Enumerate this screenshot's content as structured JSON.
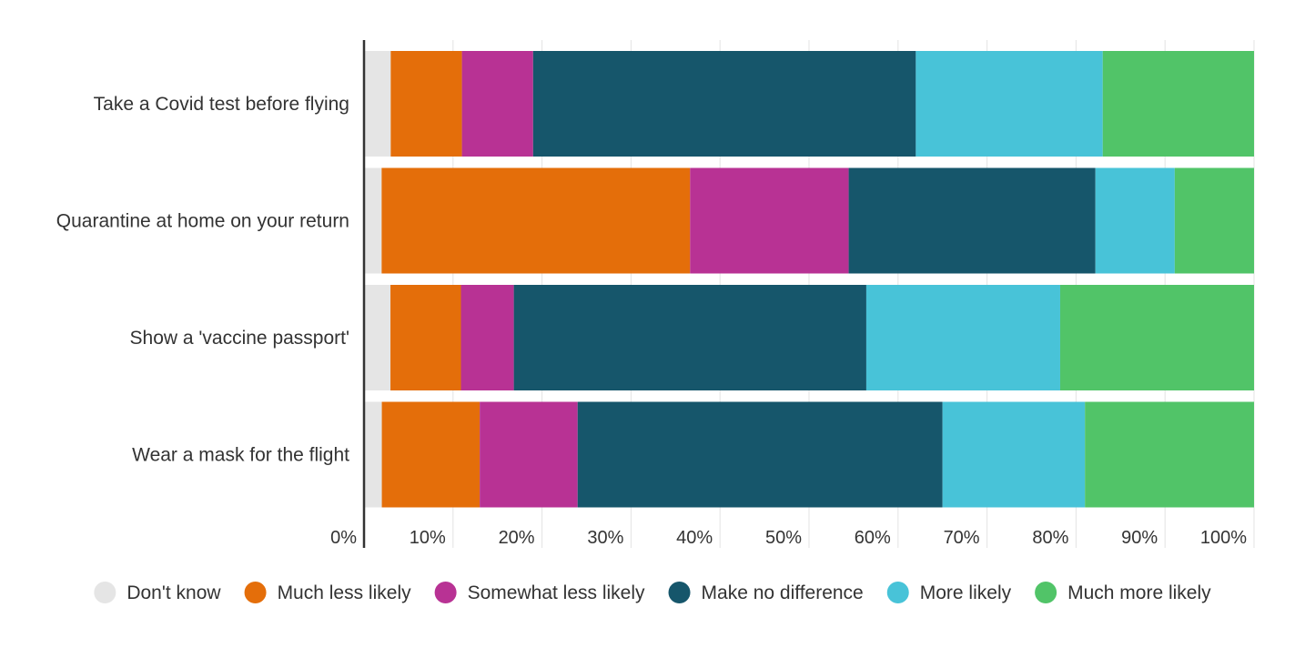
{
  "chart_data": {
    "type": "bar",
    "orientation": "horizontal",
    "stacked": true,
    "title": "",
    "xlabel": "",
    "ylabel": "",
    "xlim": [
      0,
      100
    ],
    "grid": true,
    "legend_position": "bottom",
    "categories": [
      "Take a Covid test before flying",
      "Quarantine at home on your return",
      "Show a 'vaccine passport'",
      "Wear a mask for the flight"
    ],
    "x_ticks": [
      "0%",
      "10%",
      "20%",
      "30%",
      "40%",
      "50%",
      "60%",
      "70%",
      "80%",
      "90%",
      "100%"
    ],
    "series": [
      {
        "name": "Don't know",
        "color": "#e5e5e5",
        "values": [
          3,
          2,
          3,
          2
        ]
      },
      {
        "name": "Much less likely",
        "color": "#e46e0a",
        "values": [
          8,
          35,
          8,
          11
        ]
      },
      {
        "name": "Somewhat less likely",
        "color": "#b83294",
        "values": [
          8,
          18,
          6,
          11
        ]
      },
      {
        "name": "Make no difference",
        "color": "#16566b",
        "values": [
          43,
          28,
          40,
          41
        ]
      },
      {
        "name": "More likely",
        "color": "#48c3d8",
        "values": [
          21,
          9,
          22,
          16
        ]
      },
      {
        "name": "Much more likely",
        "color": "#51c468",
        "values": [
          17,
          9,
          22,
          19
        ]
      }
    ]
  }
}
